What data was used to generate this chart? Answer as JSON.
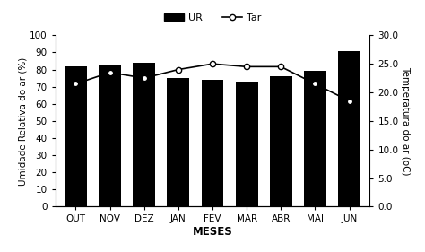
{
  "months": [
    "OUT",
    "NOV",
    "DEZ",
    "JAN",
    "FEV",
    "MAR",
    "ABR",
    "MAI",
    "JUN"
  ],
  "UR": [
    82,
    83,
    84,
    75,
    74,
    73,
    76,
    79,
    91
  ],
  "Tar": [
    21.5,
    23.5,
    22.5,
    24.0,
    25.0,
    24.5,
    24.5,
    21.5,
    18.5
  ],
  "bar_color": "#000000",
  "line_color": "#000000",
  "ylabel_left": "Umidade Relativa do ar (%)",
  "ylabel_right": "Temperatura do ar (oC)",
  "xlabel": "MESES",
  "ylim_left": [
    0,
    100
  ],
  "ylim_right": [
    0.0,
    30.0
  ],
  "yticks_left": [
    0,
    10,
    20,
    30,
    40,
    50,
    60,
    70,
    80,
    90,
    100
  ],
  "yticks_right": [
    0.0,
    5.0,
    10.0,
    15.0,
    20.0,
    25.0,
    30.0
  ],
  "legend_UR": "UR",
  "legend_Tar": "Tar",
  "bg_color": "#ffffff",
  "tick_fontsize": 7.5,
  "label_fontsize": 7.5,
  "xlabel_fontsize": 8.5
}
